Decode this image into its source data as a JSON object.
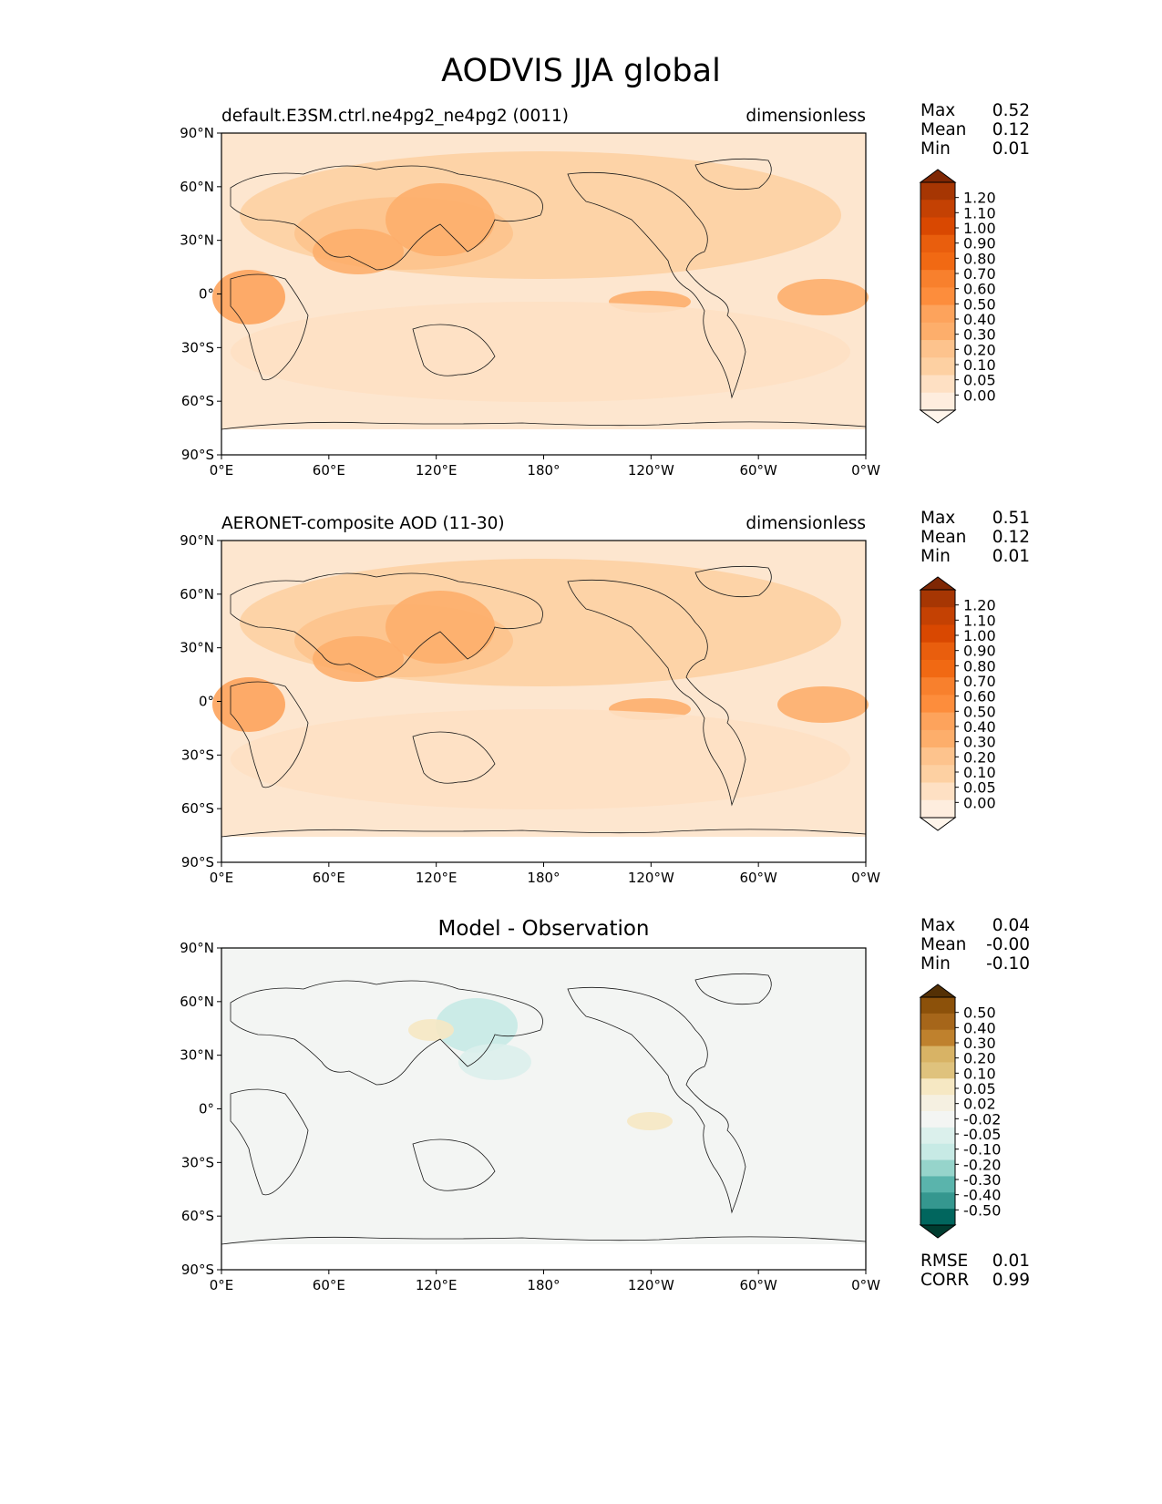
{
  "title": "AODVIS JJA global",
  "x_ticks": [
    "0°E",
    "60°E",
    "120°E",
    "180°",
    "120°W",
    "60°W",
    "0°W"
  ],
  "y_ticks": [
    "90°N",
    "60°N",
    "30°N",
    "0°",
    "30°S",
    "60°S",
    "90°S"
  ],
  "panels": [
    {
      "title": "default.E3SM.ctrl.ne4pg2_ne4pg2 (0011)",
      "units": "dimensionless",
      "stats": [
        {
          "label": "Max",
          "value": "0.52"
        },
        {
          "label": "Mean",
          "value": "0.12"
        },
        {
          "label": "Min",
          "value": "0.01"
        }
      ],
      "colorbar": "seq"
    },
    {
      "title": "AERONET-composite AOD (11-30)",
      "units": "dimensionless",
      "stats": [
        {
          "label": "Max",
          "value": "0.51"
        },
        {
          "label": "Mean",
          "value": "0.12"
        },
        {
          "label": "Min",
          "value": "0.01"
        }
      ],
      "colorbar": "seq"
    },
    {
      "title": "Model - Observation",
      "units": "",
      "stats": [
        {
          "label": "Max",
          "value": "0.04"
        },
        {
          "label": "Mean",
          "value": "-0.00"
        },
        {
          "label": "Min",
          "value": "-0.10"
        }
      ],
      "colorbar": "div",
      "metrics": [
        {
          "label": "RMSE",
          "value": "0.01"
        },
        {
          "label": "CORR",
          "value": "0.99"
        }
      ]
    }
  ],
  "colorbars": {
    "seq": {
      "labels": [
        "1.20",
        "1.10",
        "1.00",
        "0.90",
        "0.80",
        "0.70",
        "0.60",
        "0.50",
        "0.40",
        "0.30",
        "0.20",
        "0.10",
        "0.05",
        "0.00"
      ],
      "colors": [
        "#7f2704",
        "#a63603",
        "#c44103",
        "#d94801",
        "#e95e0d",
        "#f16913",
        "#f8802d",
        "#fd8d3c",
        "#fda35c",
        "#fdae6b",
        "#fdc38d",
        "#fdd0a2",
        "#fee0c3",
        "#feedde",
        "#fff5eb"
      ]
    },
    "div": {
      "labels": [
        "0.50",
        "0.40",
        "0.30",
        "0.20",
        "0.10",
        "0.05",
        "0.02",
        "-0.02",
        "-0.05",
        "-0.10",
        "-0.20",
        "-0.30",
        "-0.40",
        "-0.50"
      ],
      "colors": [
        "#543005",
        "#8c510a",
        "#a6661a",
        "#bf812d",
        "#d8b365",
        "#dfc27d",
        "#f6e8c3",
        "#f5f0e1",
        "#f3f5f3",
        "#dbf0ec",
        "#c7eae5",
        "#96d4cb",
        "#5ab4ac",
        "#35978f",
        "#01665e",
        "#003c30"
      ]
    }
  },
  "map_colors": {
    "panel1_bg": "#fde6cf",
    "panel2_bg": "#fde6cf",
    "diff_bg": "#f3f5f3",
    "land_line": "#1a1a1a"
  }
}
